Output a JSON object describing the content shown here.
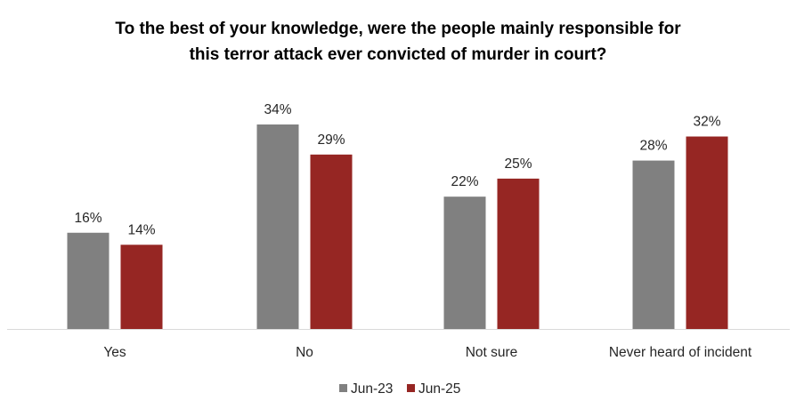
{
  "chart_data": {
    "type": "bar",
    "title_lines": [
      "To the best of your knowledge, were the people mainly responsible for",
      "this terror attack ever convicted of murder in court?"
    ],
    "categories": [
      "Yes",
      "No",
      "Not sure",
      "Never heard of incident"
    ],
    "series": [
      {
        "name": "Jun-23",
        "values": [
          16,
          34,
          22,
          28
        ],
        "labels": [
          "16%",
          "34%",
          "22%",
          "28%"
        ],
        "color": "#808080"
      },
      {
        "name": "Jun-25",
        "values": [
          14,
          29,
          25,
          32
        ],
        "labels": [
          "14%",
          "29%",
          "25%",
          "32%"
        ],
        "color": "#962623"
      }
    ],
    "unit": "%",
    "ylim": [
      0,
      34
    ],
    "grid": false,
    "legend_position": "bottom"
  }
}
